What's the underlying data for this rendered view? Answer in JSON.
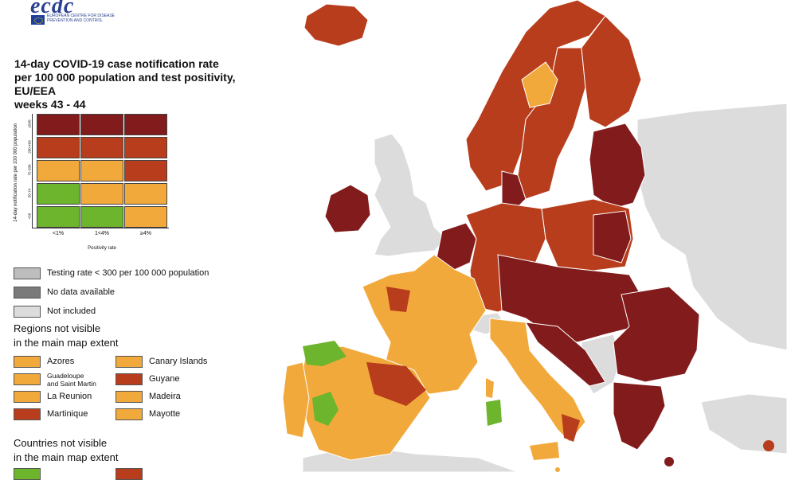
{
  "logo": {
    "brand": "ecdc",
    "agency": "EUROPEAN CENTRE FOR DISEASE PREVENTION AND CONTROL"
  },
  "title": "14-day COVID-19 case notification rate\nper 100 000 population and test positivity, EU/EEA\nweeks 43 - 44",
  "colors": {
    "darkred": "#821B1B",
    "red": "#B83D1C",
    "orange": "#F2A93B",
    "green": "#6CB52D",
    "grey_testing": "#BDBDBD",
    "grey_nodata": "#7A7A7A",
    "grey_notincluded": "#DCDCDC",
    "sea": "#FFFFFF"
  },
  "matrix": {
    "y_axis_label": "14-day notification rate per 100 000 population",
    "x_axis_label": "Positivity rate",
    "rows": [
      "≥500",
      "200-499",
      "75-200",
      "50-74",
      "<50"
    ],
    "cols": [
      "<1%",
      "1<4%",
      "≥4%"
    ],
    "cells": [
      [
        "darkred",
        "darkred",
        "darkred"
      ],
      [
        "red",
        "red",
        "red"
      ],
      [
        "orange",
        "orange",
        "red"
      ],
      [
        "green",
        "orange",
        "orange"
      ],
      [
        "green",
        "green",
        "orange"
      ]
    ]
  },
  "legend_grey": [
    {
      "label": "Testing rate < 300 per 100 000 population",
      "color": "grey_testing"
    },
    {
      "label": "No data available",
      "color": "grey_nodata"
    },
    {
      "label": "Not included",
      "color": "grey_notincluded"
    }
  ],
  "regions_heading": "Regions not visible\nin the main map extent",
  "regions": [
    {
      "label": "Azores",
      "color": "orange"
    },
    {
      "label": "Canary Islands",
      "color": "orange"
    },
    {
      "label": "Guadeloupe\nand Saint Martin",
      "color": "orange"
    },
    {
      "label": "Guyane",
      "color": "red"
    },
    {
      "label": "La Reunion",
      "color": "orange"
    },
    {
      "label": "Madeira",
      "color": "orange"
    },
    {
      "label": "Martinique",
      "color": "red"
    },
    {
      "label": "Mayotte",
      "color": "orange"
    }
  ],
  "countries_heading": "Countries not visible\nin the main map extent",
  "countries": [
    {
      "label": "",
      "color": "green"
    },
    {
      "label": "",
      "color": "red"
    }
  ]
}
